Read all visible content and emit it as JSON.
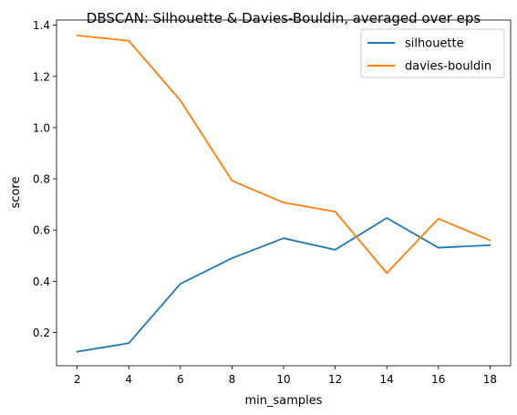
{
  "chart_data": {
    "type": "line",
    "title": "DBSCAN: Silhouette & Davies-Bouldin, averaged over eps",
    "xlabel": "min_samples",
    "ylabel": "score",
    "x": [
      2,
      4,
      6,
      8,
      10,
      12,
      14,
      16,
      18
    ],
    "xlim": [
      1.2,
      18.8
    ],
    "ylim": [
      0.07,
      1.42
    ],
    "x_ticks": [
      2,
      4,
      6,
      8,
      10,
      12,
      14,
      16,
      18
    ],
    "y_ticks": [
      0.2,
      0.4,
      0.6,
      0.8,
      1.0,
      1.2,
      1.4
    ],
    "y_tick_labels": [
      "0.2",
      "0.4",
      "0.6",
      "0.8",
      "1.0",
      "1.2",
      "1.4"
    ],
    "grid": false,
    "legend": "top-right",
    "series": [
      {
        "name": "silhouette",
        "color": "#1f77b4",
        "values": [
          0.125,
          0.158,
          0.39,
          0.49,
          0.568,
          0.523,
          0.647,
          0.531,
          0.541
        ]
      },
      {
        "name": "davies-bouldin",
        "color": "#ff7f0e",
        "values": [
          1.36,
          1.339,
          1.106,
          0.793,
          0.707,
          0.672,
          0.432,
          0.644,
          0.56
        ]
      }
    ]
  }
}
